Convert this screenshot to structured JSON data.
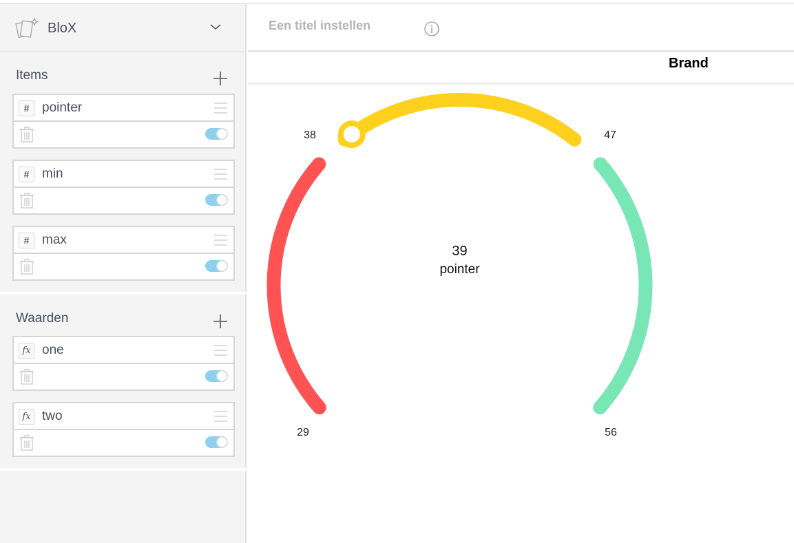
{
  "app": {
    "name": "BloX",
    "icon": "cards-sparkle-icon"
  },
  "sidebar": {
    "sections": [
      {
        "title": "Items",
        "items": [
          {
            "type": "#",
            "name": "pointer",
            "enabled": true
          },
          {
            "type": "#",
            "name": "min",
            "enabled": true
          },
          {
            "type": "#",
            "name": "max",
            "enabled": true
          }
        ]
      },
      {
        "title": "Waarden",
        "items": [
          {
            "type": "fx",
            "name": "one",
            "enabled": true
          },
          {
            "type": "fx",
            "name": "two",
            "enabled": true
          }
        ]
      }
    ]
  },
  "header": {
    "title": "Een titel instellen",
    "info_icon": "info-icon"
  },
  "colors": {
    "red": "#ff5252",
    "yellow": "#ffd11f",
    "green": "#78e6b5",
    "toggle": "#8fd0ef"
  },
  "chart_data": {
    "type": "gauge",
    "title": "Brand",
    "min": 29,
    "max": 56,
    "value": 39,
    "value_label": "39",
    "label": "pointer",
    "bands": [
      {
        "from": 29,
        "to": 38,
        "color": "#ff5252"
      },
      {
        "from": 38,
        "to": 47,
        "color": "#ffd11f"
      },
      {
        "from": 47,
        "to": 56,
        "color": "#78e6b5"
      }
    ],
    "tick_labels": [
      "29",
      "38",
      "47",
      "56"
    ]
  }
}
